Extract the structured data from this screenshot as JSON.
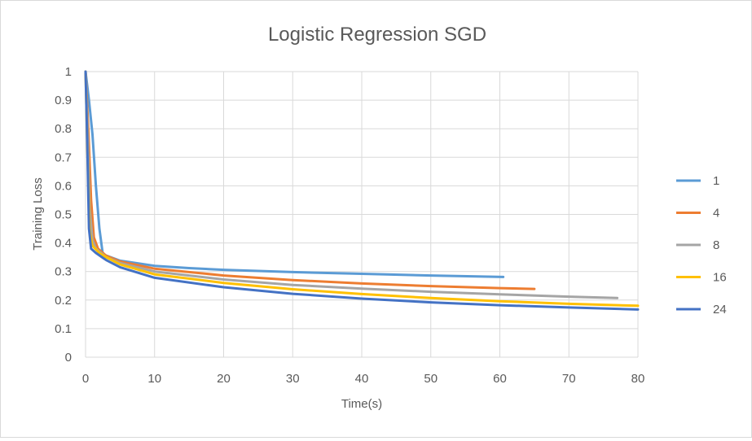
{
  "chart_data": {
    "type": "line",
    "title": "Logistic Regression SGD",
    "xlabel": "Time(s)",
    "ylabel": "Training Loss",
    "xlim": [
      0,
      80
    ],
    "ylim": [
      0,
      1
    ],
    "x_ticks": [
      "0",
      "10",
      "20",
      "30",
      "40",
      "50",
      "60",
      "70",
      "80"
    ],
    "y_ticks": [
      "0",
      "0.1",
      "0.2",
      "0.3",
      "0.4",
      "0.5",
      "0.6",
      "0.7",
      "0.8",
      "0.9",
      "1"
    ],
    "grid": true,
    "legend_position": "right",
    "series": [
      {
        "name": "1",
        "color": "#5B9BD5",
        "points": [
          [
            0,
            1.0
          ],
          [
            0.5,
            0.9
          ],
          [
            1,
            0.78
          ],
          [
            1.5,
            0.6
          ],
          [
            2,
            0.45
          ],
          [
            2.5,
            0.36
          ],
          [
            5,
            0.338
          ],
          [
            10,
            0.32
          ],
          [
            15,
            0.312
          ],
          [
            20,
            0.306
          ],
          [
            30,
            0.298
          ],
          [
            40,
            0.292
          ],
          [
            50,
            0.286
          ],
          [
            60.5,
            0.281
          ]
        ]
      },
      {
        "name": "4",
        "color": "#ED7D31",
        "points": [
          [
            0,
            1.0
          ],
          [
            0.4,
            0.8
          ],
          [
            0.8,
            0.55
          ],
          [
            1.2,
            0.42
          ],
          [
            1.8,
            0.38
          ],
          [
            3,
            0.355
          ],
          [
            5,
            0.335
          ],
          [
            10,
            0.31
          ],
          [
            20,
            0.286
          ],
          [
            30,
            0.27
          ],
          [
            40,
            0.258
          ],
          [
            50,
            0.249
          ],
          [
            60,
            0.242
          ],
          [
            65,
            0.239
          ]
        ]
      },
      {
        "name": "8",
        "color": "#A5A5A5",
        "points": [
          [
            0,
            1.0
          ],
          [
            0.3,
            0.8
          ],
          [
            0.6,
            0.52
          ],
          [
            1,
            0.41
          ],
          [
            1.5,
            0.38
          ],
          [
            3,
            0.35
          ],
          [
            5,
            0.33
          ],
          [
            10,
            0.3
          ],
          [
            20,
            0.272
          ],
          [
            30,
            0.253
          ],
          [
            40,
            0.24
          ],
          [
            50,
            0.229
          ],
          [
            60,
            0.22
          ],
          [
            70,
            0.212
          ],
          [
            77,
            0.207
          ]
        ]
      },
      {
        "name": "16",
        "color": "#FFC000",
        "points": [
          [
            0,
            1.0
          ],
          [
            0.3,
            0.7
          ],
          [
            0.6,
            0.44
          ],
          [
            1,
            0.39
          ],
          [
            2,
            0.365
          ],
          [
            3,
            0.35
          ],
          [
            5,
            0.325
          ],
          [
            10,
            0.29
          ],
          [
            20,
            0.26
          ],
          [
            30,
            0.238
          ],
          [
            40,
            0.221
          ],
          [
            50,
            0.207
          ],
          [
            60,
            0.196
          ],
          [
            70,
            0.187
          ],
          [
            80,
            0.18
          ]
        ]
      },
      {
        "name": "24",
        "color": "#4472C4",
        "points": [
          [
            0,
            1.0
          ],
          [
            0.25,
            0.75
          ],
          [
            0.5,
            0.45
          ],
          [
            0.8,
            0.38
          ],
          [
            1.5,
            0.365
          ],
          [
            3,
            0.34
          ],
          [
            5,
            0.315
          ],
          [
            10,
            0.278
          ],
          [
            20,
            0.245
          ],
          [
            30,
            0.222
          ],
          [
            40,
            0.205
          ],
          [
            50,
            0.192
          ],
          [
            60,
            0.182
          ],
          [
            70,
            0.174
          ],
          [
            80,
            0.167
          ]
        ]
      }
    ]
  }
}
